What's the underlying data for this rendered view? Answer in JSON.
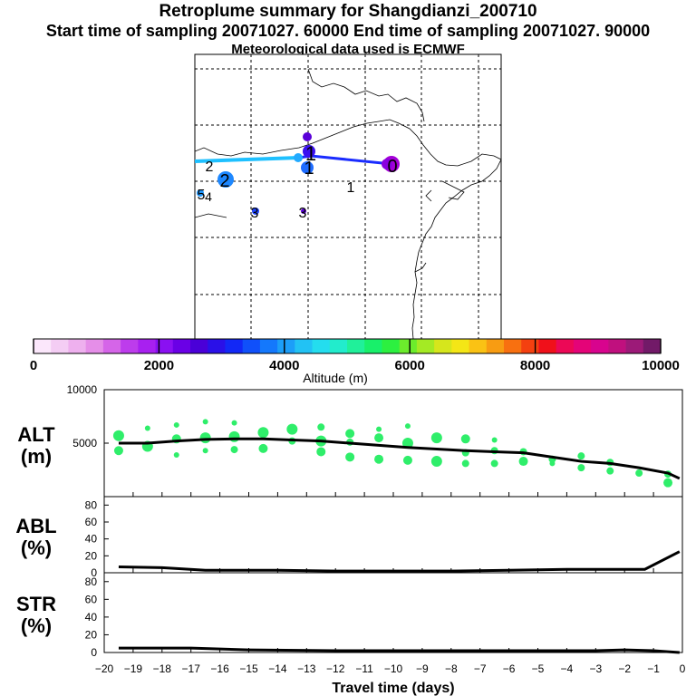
{
  "titles": {
    "title": "Retroplume summary for Shangdianzi_200710",
    "subtitle": "Start time of sampling 20071027. 60000     End time of sampling 20071027. 90000",
    "met": "Meteorological data used is ECMWF"
  },
  "map": {
    "trajectory_colors": [
      "#1ec0ff",
      "#1a2cff"
    ],
    "point_labels": [
      {
        "text": "2",
        "color": "#1e88ff",
        "size": "large"
      },
      {
        "text": "2",
        "color": "#1a56ff",
        "size": "small"
      },
      {
        "text": "5",
        "color": "#2299ff",
        "size": "small"
      },
      {
        "text": "4",
        "color": "#2299ff",
        "size": "small"
      },
      {
        "text": "3",
        "color": "#1e55ff",
        "size": "small"
      },
      {
        "text": "3",
        "color": "#2b2bff",
        "size": "small"
      },
      {
        "text": "1",
        "color": "#5a00d0",
        "size": "small"
      },
      {
        "text": "1",
        "color": "#1a66ff",
        "size": "medium"
      },
      {
        "text": "1",
        "color": "#1a3aff",
        "size": "medium"
      },
      {
        "text": "0",
        "color": "#a400d8",
        "size": "medium"
      }
    ]
  },
  "colorbar": {
    "label": "Altitude (m)",
    "ticks": [
      "0",
      "2000",
      "4000",
      "6000",
      "8000",
      "10000"
    ],
    "colors": [
      "#fbe7fb",
      "#f4cdf4",
      "#eeb0ee",
      "#e58ee8",
      "#d565e8",
      "#bd3cec",
      "#a820f0",
      "#8a10f2",
      "#6a00e6",
      "#4a00d8",
      "#2a10e8",
      "#1228f6",
      "#1050fa",
      "#1478fc",
      "#1c9ef8",
      "#22c2f4",
      "#24ddee",
      "#22eccc",
      "#20f09a",
      "#18f06a",
      "#2cf040",
      "#6cec2c",
      "#a4ea24",
      "#d6e61c",
      "#f4e616",
      "#fac214",
      "#f89c12",
      "#f87010",
      "#f44010",
      "#f0101a",
      "#ec0856",
      "#e40478",
      "#d8048e",
      "#c0107e",
      "#9c1a78",
      "#721a68"
    ]
  },
  "chart_data": [
    {
      "type": "line",
      "panel": "ALT",
      "ylabel": "ALT\n(m)",
      "xlim": [
        -20,
        0
      ],
      "ylim": [
        0,
        10000
      ],
      "yticks": [
        5000,
        10000
      ],
      "line": {
        "color": "#000000",
        "x": [
          -19.5,
          -18.5,
          -17.5,
          -16.5,
          -15.5,
          -14.5,
          -13.5,
          -12.5,
          -11.5,
          -10.5,
          -9.5,
          -8.5,
          -7.5,
          -6.5,
          -5.5,
          -4.5,
          -3.5,
          -2.5,
          -1.5,
          -0.5,
          -0.1
        ],
        "y": [
          5000,
          5000,
          5200,
          5350,
          5400,
          5400,
          5300,
          5200,
          5000,
          4800,
          4600,
          4450,
          4300,
          4200,
          4100,
          3700,
          3300,
          3100,
          2700,
          2200,
          1700
        ]
      },
      "scatter": {
        "color": "#2fee6a",
        "points": [
          {
            "x": -19.5,
            "y": 5700,
            "r": 6
          },
          {
            "x": -19.5,
            "y": 4300,
            "r": 5
          },
          {
            "x": -18.5,
            "y": 6400,
            "r": 3
          },
          {
            "x": -18.5,
            "y": 4700,
            "r": 6
          },
          {
            "x": -17.5,
            "y": 6700,
            "r": 3
          },
          {
            "x": -17.5,
            "y": 5400,
            "r": 5
          },
          {
            "x": -17.5,
            "y": 3900,
            "r": 3
          },
          {
            "x": -16.5,
            "y": 7000,
            "r": 3
          },
          {
            "x": -16.5,
            "y": 5500,
            "r": 6
          },
          {
            "x": -16.5,
            "y": 4300,
            "r": 3
          },
          {
            "x": -15.5,
            "y": 6900,
            "r": 3
          },
          {
            "x": -15.5,
            "y": 5600,
            "r": 6
          },
          {
            "x": -15.5,
            "y": 4400,
            "r": 4
          },
          {
            "x": -14.5,
            "y": 6000,
            "r": 6
          },
          {
            "x": -14.5,
            "y": 4500,
            "r": 5
          },
          {
            "x": -13.5,
            "y": 6300,
            "r": 6
          },
          {
            "x": -13.5,
            "y": 5200,
            "r": 4
          },
          {
            "x": -12.5,
            "y": 6500,
            "r": 4
          },
          {
            "x": -12.5,
            "y": 5200,
            "r": 6
          },
          {
            "x": -12.5,
            "y": 4200,
            "r": 5
          },
          {
            "x": -11.5,
            "y": 5900,
            "r": 5
          },
          {
            "x": -11.5,
            "y": 5100,
            "r": 4
          },
          {
            "x": -11.5,
            "y": 3700,
            "r": 5
          },
          {
            "x": -10.5,
            "y": 6300,
            "r": 3
          },
          {
            "x": -10.5,
            "y": 5500,
            "r": 5
          },
          {
            "x": -10.5,
            "y": 3500,
            "r": 5
          },
          {
            "x": -9.5,
            "y": 6600,
            "r": 3
          },
          {
            "x": -9.5,
            "y": 5000,
            "r": 6
          },
          {
            "x": -9.5,
            "y": 3400,
            "r": 5
          },
          {
            "x": -8.5,
            "y": 5500,
            "r": 6
          },
          {
            "x": -8.5,
            "y": 3300,
            "r": 6
          },
          {
            "x": -7.5,
            "y": 5400,
            "r": 5
          },
          {
            "x": -7.5,
            "y": 4100,
            "r": 4
          },
          {
            "x": -7.5,
            "y": 3100,
            "r": 4
          },
          {
            "x": -6.5,
            "y": 5300,
            "r": 3
          },
          {
            "x": -6.5,
            "y": 4300,
            "r": 4
          },
          {
            "x": -6.5,
            "y": 3100,
            "r": 4
          },
          {
            "x": -5.5,
            "y": 4200,
            "r": 4
          },
          {
            "x": -5.5,
            "y": 3300,
            "r": 5
          },
          {
            "x": -4.5,
            "y": 3500,
            "r": 4
          },
          {
            "x": -4.5,
            "y": 3100,
            "r": 3
          },
          {
            "x": -3.5,
            "y": 3800,
            "r": 4
          },
          {
            "x": -3.5,
            "y": 2700,
            "r": 4
          },
          {
            "x": -2.5,
            "y": 3200,
            "r": 4
          },
          {
            "x": -2.5,
            "y": 2400,
            "r": 4
          },
          {
            "x": -1.5,
            "y": 2200,
            "r": 4
          },
          {
            "x": -0.5,
            "y": 2100,
            "r": 4
          },
          {
            "x": -0.5,
            "y": 1300,
            "r": 5
          }
        ]
      }
    },
    {
      "type": "line",
      "panel": "ABL",
      "ylabel": "ABL\n(%)",
      "xlim": [
        -20,
        0
      ],
      "ylim": [
        0,
        90
      ],
      "yticks": [
        0,
        20,
        40,
        60,
        80
      ],
      "series": [
        {
          "name": "ABL",
          "x": [
            -19.5,
            -18,
            -16.5,
            -14,
            -12,
            -10,
            -8,
            -6,
            -4,
            -2,
            -1.3,
            -0.1
          ],
          "y": [
            7,
            6,
            3,
            3,
            2,
            2,
            2,
            3,
            4,
            4,
            4,
            25
          ]
        }
      ]
    },
    {
      "type": "line",
      "panel": "STR",
      "ylabel": "STR\n(%)",
      "xlim": [
        -20,
        0
      ],
      "ylim": [
        0,
        90
      ],
      "yticks": [
        0,
        20,
        40,
        60,
        80
      ],
      "xlabel": "Travel time (days)",
      "xticks": [
        -20,
        -19,
        -18,
        -17,
        -16,
        -15,
        -14,
        -13,
        -12,
        -11,
        -10,
        -9,
        -8,
        -7,
        -6,
        -5,
        -4,
        -3,
        -2,
        -1,
        0
      ],
      "series": [
        {
          "name": "STR",
          "x": [
            -19.5,
            -17,
            -15,
            -12,
            -9,
            -6,
            -3,
            -2,
            -1,
            -0.1
          ],
          "y": [
            5,
            5,
            3,
            2,
            2,
            2,
            2,
            3,
            2,
            0
          ]
        }
      ]
    }
  ]
}
